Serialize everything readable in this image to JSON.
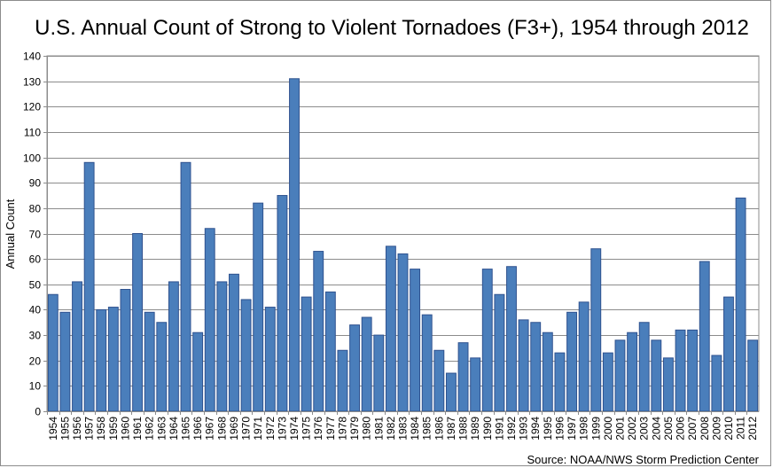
{
  "chart_data": {
    "type": "bar",
    "title": "U.S. Annual Count of Strong to Violent Tornadoes (F3+), 1954 through 2012",
    "xlabel": "",
    "ylabel": "Annual Count",
    "ylim": [
      0,
      140
    ],
    "ytick_step": 10,
    "grid": true,
    "bar_color": "#4a7ebb",
    "bar_border_color": "#2f528f",
    "categories": [
      "1954",
      "1955",
      "1956",
      "1957",
      "1958",
      "1959",
      "1960",
      "1961",
      "1962",
      "1963",
      "1964",
      "1965",
      "1966",
      "1967",
      "1968",
      "1969",
      "1970",
      "1971",
      "1972",
      "1973",
      "1974",
      "1975",
      "1976",
      "1977",
      "1978",
      "1979",
      "1980",
      "1981",
      "1982",
      "1983",
      "1984",
      "1985",
      "1986",
      "1987",
      "1988",
      "1989",
      "1990",
      "1991",
      "1992",
      "1993",
      "1994",
      "1995",
      "1996",
      "1997",
      "1998",
      "1999",
      "2000",
      "2001",
      "2002",
      "2003",
      "2004",
      "2005",
      "2006",
      "2007",
      "2008",
      "2009",
      "2010",
      "2011",
      "2012"
    ],
    "values": [
      46,
      39,
      51,
      98,
      40,
      41,
      48,
      70,
      39,
      35,
      51,
      98,
      31,
      72,
      51,
      54,
      44,
      82,
      41,
      85,
      131,
      45,
      63,
      47,
      24,
      34,
      37,
      30,
      65,
      62,
      56,
      38,
      24,
      15,
      27,
      21,
      56,
      46,
      57,
      36,
      35,
      31,
      23,
      39,
      43,
      64,
      23,
      28,
      31,
      35,
      28,
      21,
      32,
      32,
      59,
      22,
      45,
      84,
      28
    ],
    "source": "Source: NOAA/NWS Storm Prediction Center"
  }
}
